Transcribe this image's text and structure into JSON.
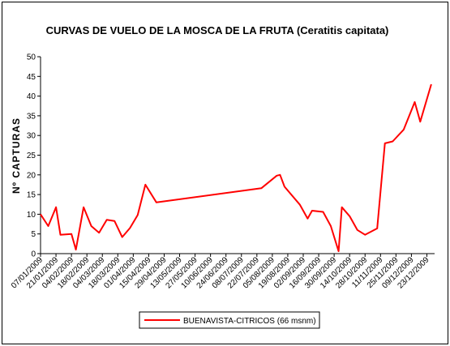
{
  "chart_data": {
    "type": "line",
    "title_main": "CURVAS DE VUELO DE LA MOSCA DE LA FRUTA",
    "title_species": "(Ceratitis capitata)",
    "ylabel": "Nº CAPTURAS",
    "xlabel": "",
    "ylim": [
      0,
      50
    ],
    "yticks": [
      0,
      5,
      10,
      15,
      20,
      25,
      30,
      35,
      40,
      45,
      50
    ],
    "grid": false,
    "legend_position": "bottom-center",
    "line_color": "#ff0000",
    "x_tick_labels": [
      "07/01/2009",
      "21/01/2009",
      "04/02/2009",
      "18/02/2009",
      "04/03/2009",
      "18/03/2009",
      "01/04/2009",
      "15/04/2009",
      "29/04/2009",
      "13/05/2009",
      "27/05/2009",
      "10/06/2009",
      "24/06/2009",
      "08/07/2009",
      "22/07/2009",
      "05/08/2009",
      "19/08/2009",
      "02/09/2009",
      "16/09/2009",
      "30/09/2009",
      "14/10/2009",
      "28/10/2009",
      "11/11/2009",
      "25/11/2009",
      "09/12/2009",
      "23/12/2009"
    ],
    "series": [
      {
        "name": "BUENAVISTA-CITRICOS (66 msnm)",
        "points": [
          [
            "2009-01-07",
            10
          ],
          [
            "2009-01-14",
            7
          ],
          [
            "2009-01-21",
            11.8
          ],
          [
            "2009-01-25",
            4.8
          ],
          [
            "2009-02-04",
            5
          ],
          [
            "2009-02-08",
            1
          ],
          [
            "2009-02-15",
            11.8
          ],
          [
            "2009-02-22",
            7
          ],
          [
            "2009-03-01",
            5.3
          ],
          [
            "2009-03-08",
            8.6
          ],
          [
            "2009-03-15",
            8.3
          ],
          [
            "2009-03-22",
            4.2
          ],
          [
            "2009-03-29",
            6.5
          ],
          [
            "2009-04-05",
            9.8
          ],
          [
            "2009-04-12",
            17.5
          ],
          [
            "2009-04-22",
            13
          ],
          [
            "2009-07-26",
            16.6
          ],
          [
            "2009-08-09",
            19.8
          ],
          [
            "2009-08-12",
            20
          ],
          [
            "2009-08-16",
            17
          ],
          [
            "2009-08-30",
            12.4
          ],
          [
            "2009-09-06",
            8.9
          ],
          [
            "2009-09-10",
            10.9
          ],
          [
            "2009-09-20",
            10.6
          ],
          [
            "2009-09-27",
            7
          ],
          [
            "2009-10-04",
            0.6
          ],
          [
            "2009-10-07",
            11.8
          ],
          [
            "2009-10-14",
            9.5
          ],
          [
            "2009-10-21",
            6
          ],
          [
            "2009-10-28",
            4.8
          ],
          [
            "2009-11-08",
            6.4
          ],
          [
            "2009-11-15",
            28
          ],
          [
            "2009-11-22",
            28.5
          ],
          [
            "2009-12-02",
            31.5
          ],
          [
            "2009-12-12",
            38.5
          ],
          [
            "2009-12-17",
            33.5
          ],
          [
            "2009-12-27",
            43
          ]
        ]
      }
    ]
  }
}
